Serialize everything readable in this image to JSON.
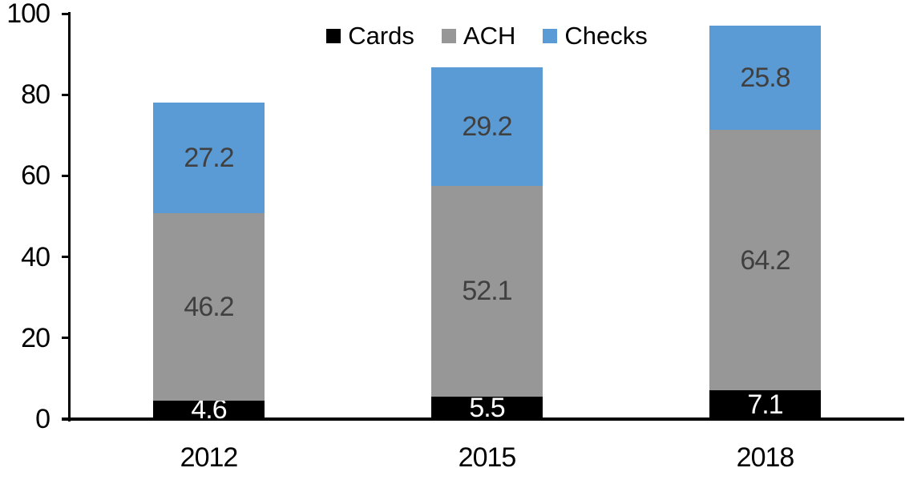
{
  "chart_data": {
    "type": "bar",
    "stacked": true,
    "title": "",
    "xlabel": "",
    "ylabel": "",
    "categories": [
      "2012",
      "2015",
      "2018"
    ],
    "series": [
      {
        "name": "Cards",
        "color": "#000000",
        "label_color": "#ffffff",
        "values": [
          4.6,
          5.5,
          7.1
        ]
      },
      {
        "name": "ACH",
        "color": "#979797",
        "label_color": "#404040",
        "values": [
          46.2,
          52.1,
          64.2
        ]
      },
      {
        "name": "Checks",
        "color": "#5B9BD5",
        "label_color": "#404040",
        "values": [
          27.2,
          29.2,
          25.8
        ]
      }
    ],
    "value_label_format": "one-decimal",
    "ylim": [
      0,
      100
    ],
    "yticks": [
      0,
      20,
      40,
      60,
      80,
      100
    ],
    "grid": false,
    "legend_position": "top-center",
    "axis_color": "#000000",
    "background_color": "#ffffff"
  }
}
